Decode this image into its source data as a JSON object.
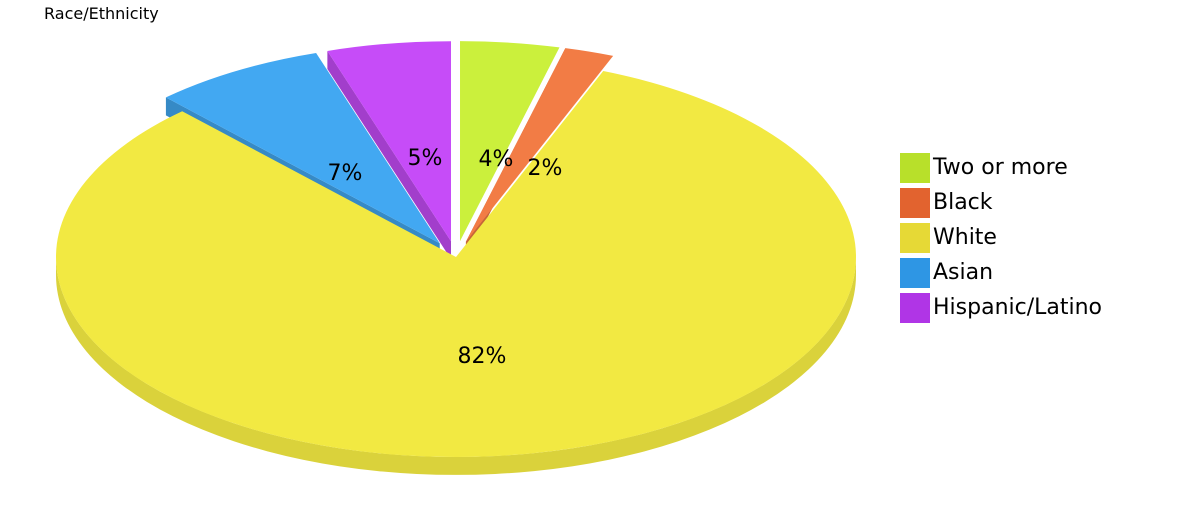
{
  "chart_data": {
    "type": "pie",
    "title": "Race/Ethnicity",
    "slices": [
      {
        "name": "Two or more",
        "value": 4,
        "label": "4%",
        "color": "#cbf03c",
        "legend_color": "#b8e02a"
      },
      {
        "name": "Black",
        "value": 2,
        "label": "2%",
        "color": "#f27c45",
        "legend_color": "#e2632f"
      },
      {
        "name": "White",
        "value": 82,
        "label": "82%",
        "color": "#f2e942",
        "legend_color": "#e6d936"
      },
      {
        "name": "Asian",
        "value": 7,
        "label": "7%",
        "color": "#42a8f2",
        "legend_color": "#2e96e4"
      },
      {
        "name": "Hispanic/Latino",
        "value": 5,
        "label": "5%",
        "color": "#c64cf8",
        "legend_color": "#b035e6"
      }
    ],
    "legend_placement": "right"
  }
}
